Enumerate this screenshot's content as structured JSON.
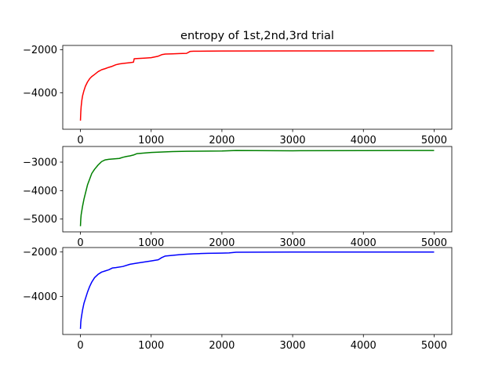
{
  "chart_data": [
    {
      "type": "line",
      "title": "entropy of 1st,2nd,3rd trial",
      "xlim": [
        -250,
        5250
      ],
      "ylim": [
        -5700,
        -1800
      ],
      "x_ticks": [
        0,
        1000,
        2000,
        3000,
        4000,
        5000
      ],
      "x_tick_labels": [
        "0",
        "1000",
        "2000",
        "3000",
        "4000",
        "5000"
      ],
      "y_ticks": [
        -4000,
        -2000
      ],
      "y_tick_labels": [
        "−4000",
        "−2000"
      ],
      "grid": false,
      "series": [
        {
          "color": "#ff0000",
          "x": [
            0,
            5,
            10,
            20,
            30,
            50,
            70,
            100,
            130,
            160,
            200,
            250,
            300,
            350,
            400,
            450,
            500,
            550,
            600,
            650,
            700,
            750,
            760,
            800,
            900,
            1000,
            1100,
            1150,
            1200,
            1300,
            1400,
            1500,
            1550,
            1600,
            1800,
            2000,
            3000,
            4000,
            5000
          ],
          "y": [
            -5300,
            -4900,
            -4650,
            -4350,
            -4150,
            -3900,
            -3700,
            -3500,
            -3350,
            -3250,
            -3150,
            -3020,
            -2930,
            -2880,
            -2820,
            -2770,
            -2700,
            -2660,
            -2640,
            -2620,
            -2600,
            -2580,
            -2420,
            -2410,
            -2390,
            -2370,
            -2300,
            -2230,
            -2200,
            -2190,
            -2180,
            -2170,
            -2080,
            -2070,
            -2065,
            -2060,
            -2055,
            -2055,
            -2050
          ]
        }
      ]
    },
    {
      "type": "line",
      "xlim": [
        -250,
        5250
      ],
      "ylim": [
        -5450,
        -2450
      ],
      "x_ticks": [
        0,
        1000,
        2000,
        3000,
        4000,
        5000
      ],
      "x_tick_labels": [
        "0",
        "1000",
        "2000",
        "3000",
        "4000",
        "5000"
      ],
      "y_ticks": [
        -5000,
        -4000,
        -3000
      ],
      "y_tick_labels": [
        "−5000",
        "−4000",
        "−3000"
      ],
      "grid": false,
      "series": [
        {
          "color": "#008000",
          "x": [
            0,
            5,
            10,
            20,
            30,
            50,
            70,
            100,
            130,
            160,
            200,
            250,
            300,
            350,
            400,
            450,
            500,
            550,
            600,
            650,
            700,
            750,
            800,
            900,
            1000,
            1100,
            1200,
            1300,
            1500,
            2000,
            2200,
            3000,
            4000,
            5000
          ],
          "y": [
            -5250,
            -5000,
            -4850,
            -4700,
            -4550,
            -4300,
            -4100,
            -3800,
            -3600,
            -3400,
            -3250,
            -3100,
            -2980,
            -2920,
            -2900,
            -2890,
            -2880,
            -2870,
            -2830,
            -2800,
            -2780,
            -2750,
            -2700,
            -2680,
            -2660,
            -2650,
            -2640,
            -2630,
            -2620,
            -2610,
            -2590,
            -2600,
            -2595,
            -2590
          ]
        }
      ]
    },
    {
      "type": "line",
      "xlim": [
        -250,
        5250
      ],
      "ylim": [
        -5700,
        -1800
      ],
      "x_ticks": [
        0,
        1000,
        2000,
        3000,
        4000,
        5000
      ],
      "x_tick_labels": [
        "0",
        "1000",
        "2000",
        "3000",
        "4000",
        "5000"
      ],
      "y_ticks": [
        -4000,
        -2000
      ],
      "y_tick_labels": [
        "−4000",
        "−2000"
      ],
      "grid": false,
      "series": [
        {
          "color": "#0000ff",
          "x": [
            0,
            5,
            10,
            20,
            30,
            50,
            70,
            100,
            130,
            160,
            200,
            250,
            300,
            350,
            400,
            450,
            500,
            600,
            700,
            800,
            900,
            1000,
            1100,
            1150,
            1200,
            1300,
            1400,
            1500,
            1600,
            1700,
            1800,
            2000,
            2100,
            2200,
            3000,
            4000,
            5000
          ],
          "y": [
            -5450,
            -5150,
            -5000,
            -4800,
            -4600,
            -4300,
            -4100,
            -3800,
            -3550,
            -3350,
            -3150,
            -3000,
            -2900,
            -2850,
            -2800,
            -2720,
            -2700,
            -2650,
            -2550,
            -2500,
            -2450,
            -2400,
            -2350,
            -2250,
            -2180,
            -2150,
            -2120,
            -2100,
            -2080,
            -2070,
            -2060,
            -2050,
            -2040,
            -2010,
            -2000,
            -2000,
            -2000
          ]
        }
      ]
    }
  ]
}
